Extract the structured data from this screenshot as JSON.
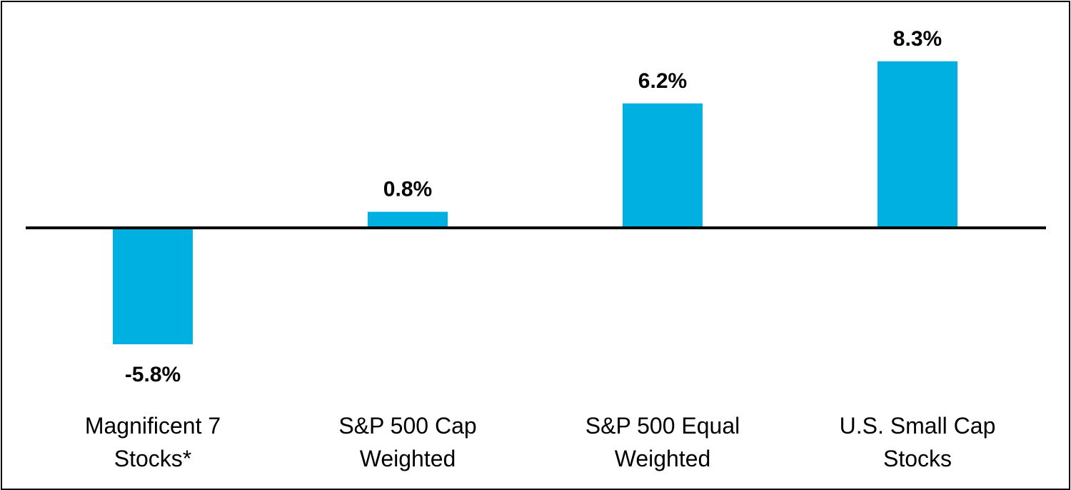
{
  "chart_data": {
    "type": "bar",
    "categories": [
      [
        "Magnificent 7",
        "Stocks*"
      ],
      [
        "S&P 500 Cap",
        "Weighted"
      ],
      [
        "S&P 500 Equal",
        "Weighted"
      ],
      [
        "U.S. Small Cap",
        "Stocks"
      ]
    ],
    "values": [
      -5.8,
      0.8,
      6.2,
      8.3
    ],
    "data_labels": [
      "-5.8%",
      "0.8%",
      "6.2%",
      "8.3%"
    ],
    "title": "",
    "xlabel": "",
    "ylabel": "",
    "ylim": [
      -5.8,
      8.3
    ],
    "grid": false,
    "legend": "none",
    "colors": {
      "bar": "#00b0e0",
      "axis": "#000000",
      "frame": "#000000",
      "background": "#ffffff"
    }
  }
}
